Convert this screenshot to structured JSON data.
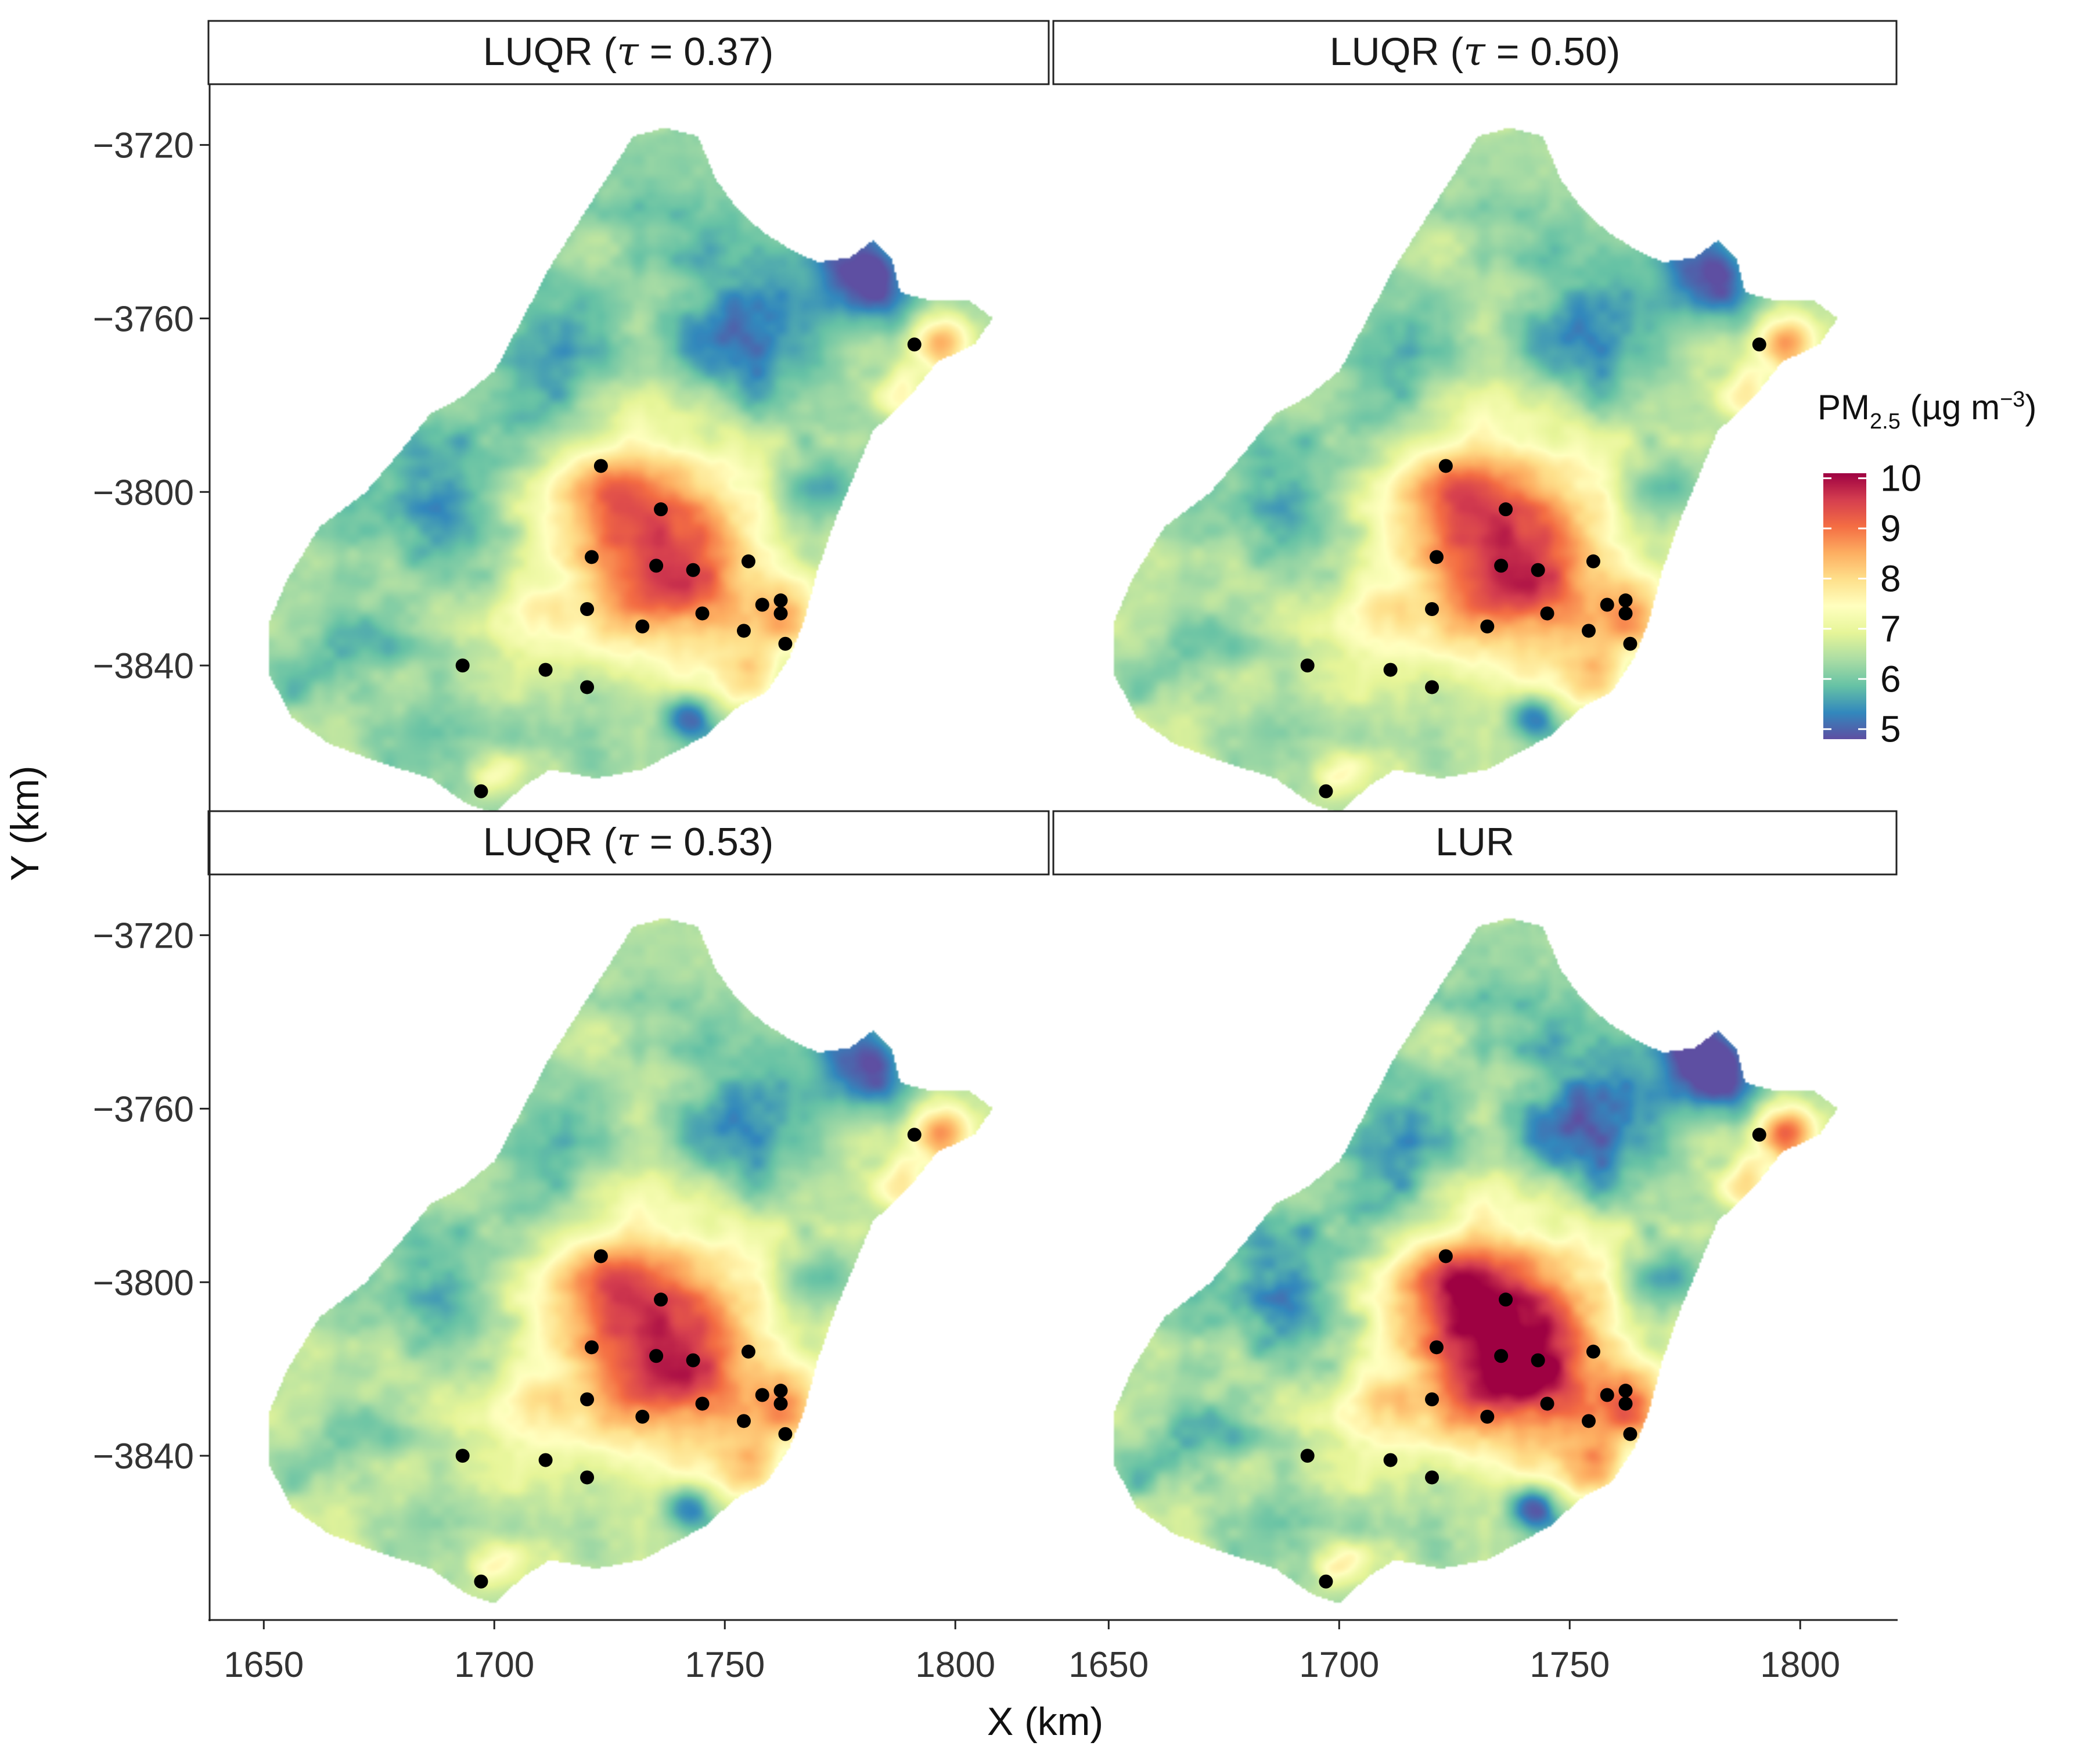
{
  "chart_data": {
    "type": "faceted-map",
    "xlabel": "X (km)",
    "ylabel": "Y (km)",
    "x_ticks": [
      1650,
      1700,
      1750,
      1800
    ],
    "y_ticks": [
      -3720,
      -3760,
      -3800,
      -3840
    ],
    "xlim": [
      1638,
      1820
    ],
    "ylim": [
      -3878,
      -3706
    ],
    "panels": [
      {
        "title": "LUQR (τ = 0.37)",
        "label_pre": "LUQR (",
        "label_sym": "τ",
        "label_post": " = 0.37)",
        "variant": 0.37
      },
      {
        "title": "LUQR (τ = 0.50)",
        "label_pre": "LUQR (",
        "label_sym": "τ",
        "label_post": " = 0.50)",
        "variant": 0.5
      },
      {
        "title": "LUQR (τ = 0.53)",
        "label_pre": "LUQR (",
        "label_sym": "τ",
        "label_post": " = 0.53)",
        "variant": 0.53
      },
      {
        "title": "LUR",
        "label_pre": "LUR",
        "label_sym": "",
        "label_post": "",
        "variant": 0.45
      }
    ],
    "legend": {
      "title_main": "PM",
      "title_sub": "2.5",
      "title_rest": " (µg m",
      "title_sup": "−3",
      "title_end": ")",
      "min": 4.8,
      "max": 10.1,
      "breaks": [
        5,
        6,
        7,
        8,
        9,
        10
      ],
      "palette": [
        "#5E4FA2",
        "#3288BD",
        "#66C2A5",
        "#ABDDA4",
        "#E6F598",
        "#FFFFBF",
        "#FEE08B",
        "#FDAE61",
        "#F46D43",
        "#D53E4F",
        "#9E0142"
      ]
    },
    "region_outline_km": [
      [
        1655,
        -3820
      ],
      [
        1662,
        -3808
      ],
      [
        1672,
        -3800
      ],
      [
        1680,
        -3790
      ],
      [
        1686,
        -3782
      ],
      [
        1693,
        -3778
      ],
      [
        1700,
        -3772
      ],
      [
        1706,
        -3760
      ],
      [
        1712,
        -3748
      ],
      [
        1718,
        -3738
      ],
      [
        1724,
        -3728
      ],
      [
        1730,
        -3718
      ],
      [
        1737,
        -3716
      ],
      [
        1744,
        -3718
      ],
      [
        1748,
        -3728
      ],
      [
        1752,
        -3734
      ],
      [
        1758,
        -3740
      ],
      [
        1764,
        -3744
      ],
      [
        1770,
        -3747
      ],
      [
        1777,
        -3746
      ],
      [
        1782,
        -3742
      ],
      [
        1786,
        -3746
      ],
      [
        1788,
        -3754
      ],
      [
        1795,
        -3756
      ],
      [
        1803,
        -3756
      ],
      [
        1808,
        -3760
      ],
      [
        1804,
        -3766
      ],
      [
        1796,
        -3770
      ],
      [
        1790,
        -3778
      ],
      [
        1782,
        -3786
      ],
      [
        1778,
        -3796
      ],
      [
        1774,
        -3806
      ],
      [
        1770,
        -3818
      ],
      [
        1767,
        -3830
      ],
      [
        1764,
        -3838
      ],
      [
        1759,
        -3846
      ],
      [
        1752,
        -3850
      ],
      [
        1746,
        -3856
      ],
      [
        1739,
        -3860
      ],
      [
        1732,
        -3864
      ],
      [
        1722,
        -3866
      ],
      [
        1712,
        -3864
      ],
      [
        1706,
        -3868
      ],
      [
        1700,
        -3874
      ],
      [
        1694,
        -3872
      ],
      [
        1686,
        -3866
      ],
      [
        1674,
        -3862
      ],
      [
        1664,
        -3858
      ],
      [
        1656,
        -3852
      ],
      [
        1651,
        -3842
      ],
      [
        1651,
        -3830
      ]
    ],
    "monitoring_sites_km": [
      [
        1791,
        -3766
      ],
      [
        1723,
        -3794
      ],
      [
        1736,
        -3804
      ],
      [
        1721,
        -3815
      ],
      [
        1735,
        -3817
      ],
      [
        1743,
        -3818
      ],
      [
        1755,
        -3816
      ],
      [
        1720,
        -3827
      ],
      [
        1732,
        -3831
      ],
      [
        1745,
        -3828
      ],
      [
        1758,
        -3826
      ],
      [
        1762,
        -3825
      ],
      [
        1762,
        -3828
      ],
      [
        1754,
        -3832
      ],
      [
        1763,
        -3835
      ],
      [
        1693,
        -3840
      ],
      [
        1711,
        -3841
      ],
      [
        1720,
        -3845
      ],
      [
        1697,
        -3869
      ]
    ],
    "hotspots_km": [
      [
        1738,
        -3818,
        24,
        3.1
      ],
      [
        1725,
        -3796,
        14,
        1.4
      ],
      [
        1762,
        -3828,
        8,
        1.5
      ],
      [
        1796,
        -3766,
        7,
        2.0
      ],
      [
        1788,
        -3778,
        6,
        1.2
      ],
      [
        1708,
        -3828,
        8,
        0.9
      ],
      [
        1700,
        -3864,
        5,
        0.8
      ],
      [
        1755,
        -3843,
        8,
        1.3
      ]
    ],
    "coldspots_km": [
      [
        1780,
        -3750,
        10,
        -1.8
      ],
      [
        1755,
        -3762,
        16,
        -1.1
      ],
      [
        1688,
        -3805,
        13,
        -0.9
      ],
      [
        1742,
        -3852,
        6,
        -1.5
      ],
      [
        1712,
        -3775,
        15,
        -0.8
      ],
      [
        1770,
        -3800,
        8,
        -0.6
      ],
      [
        1668,
        -3838,
        12,
        -0.5
      ]
    ]
  }
}
